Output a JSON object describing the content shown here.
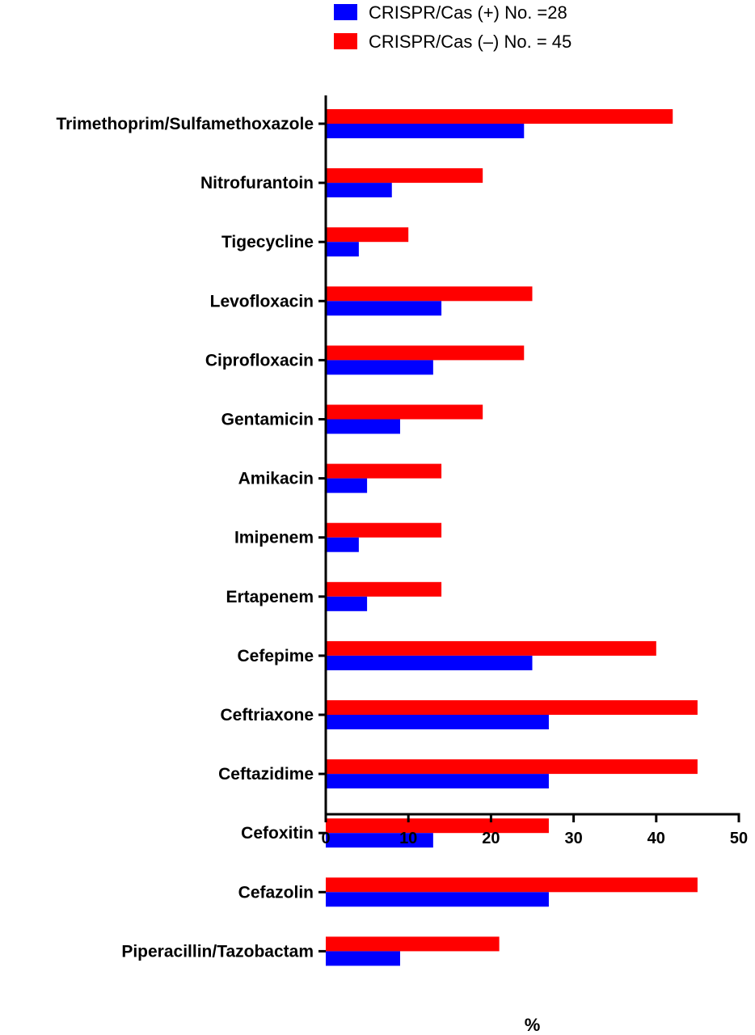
{
  "chart_data": {
    "type": "bar",
    "orientation": "horizontal",
    "categories": [
      "Trimethoprim/Sulfamethoxazole",
      "Nitrofurantoin",
      "Tigecycline",
      "Levofloxacin",
      "Ciprofloxacin",
      "Gentamicin",
      "Amikacin",
      "Imipenem",
      "Ertapenem",
      "Cefepime",
      "Ceftriaxone",
      "Ceftazidime",
      "Cefoxitin",
      "Cefazolin",
      "Piperacillin/Tazobactam"
    ],
    "series": [
      {
        "name": "CRISPR/Cas (–) No. = 45",
        "color": "#ff0000",
        "values": [
          42,
          19,
          10,
          25,
          24,
          19,
          14,
          14,
          14,
          40,
          45,
          45,
          27,
          45,
          21
        ]
      },
      {
        "name": "CRISPR/Cas (+) No. =28",
        "color": "#0000ff",
        "values": [
          24,
          8,
          4,
          14,
          13,
          9,
          5,
          4,
          5,
          25,
          27,
          27,
          13,
          27,
          9
        ]
      }
    ],
    "legend": [
      {
        "label": "CRISPR/Cas (+) No. =28",
        "color": "#0000ff"
      },
      {
        "label": "CRISPR/Cas (–) No. = 45",
        "color": "#ff0000"
      }
    ],
    "legend_position": "top",
    "xlabel": "%",
    "ylabel": "",
    "xlim": [
      0,
      50
    ],
    "xticks": [
      0,
      10,
      20,
      30,
      40,
      50
    ],
    "grid": false
  }
}
